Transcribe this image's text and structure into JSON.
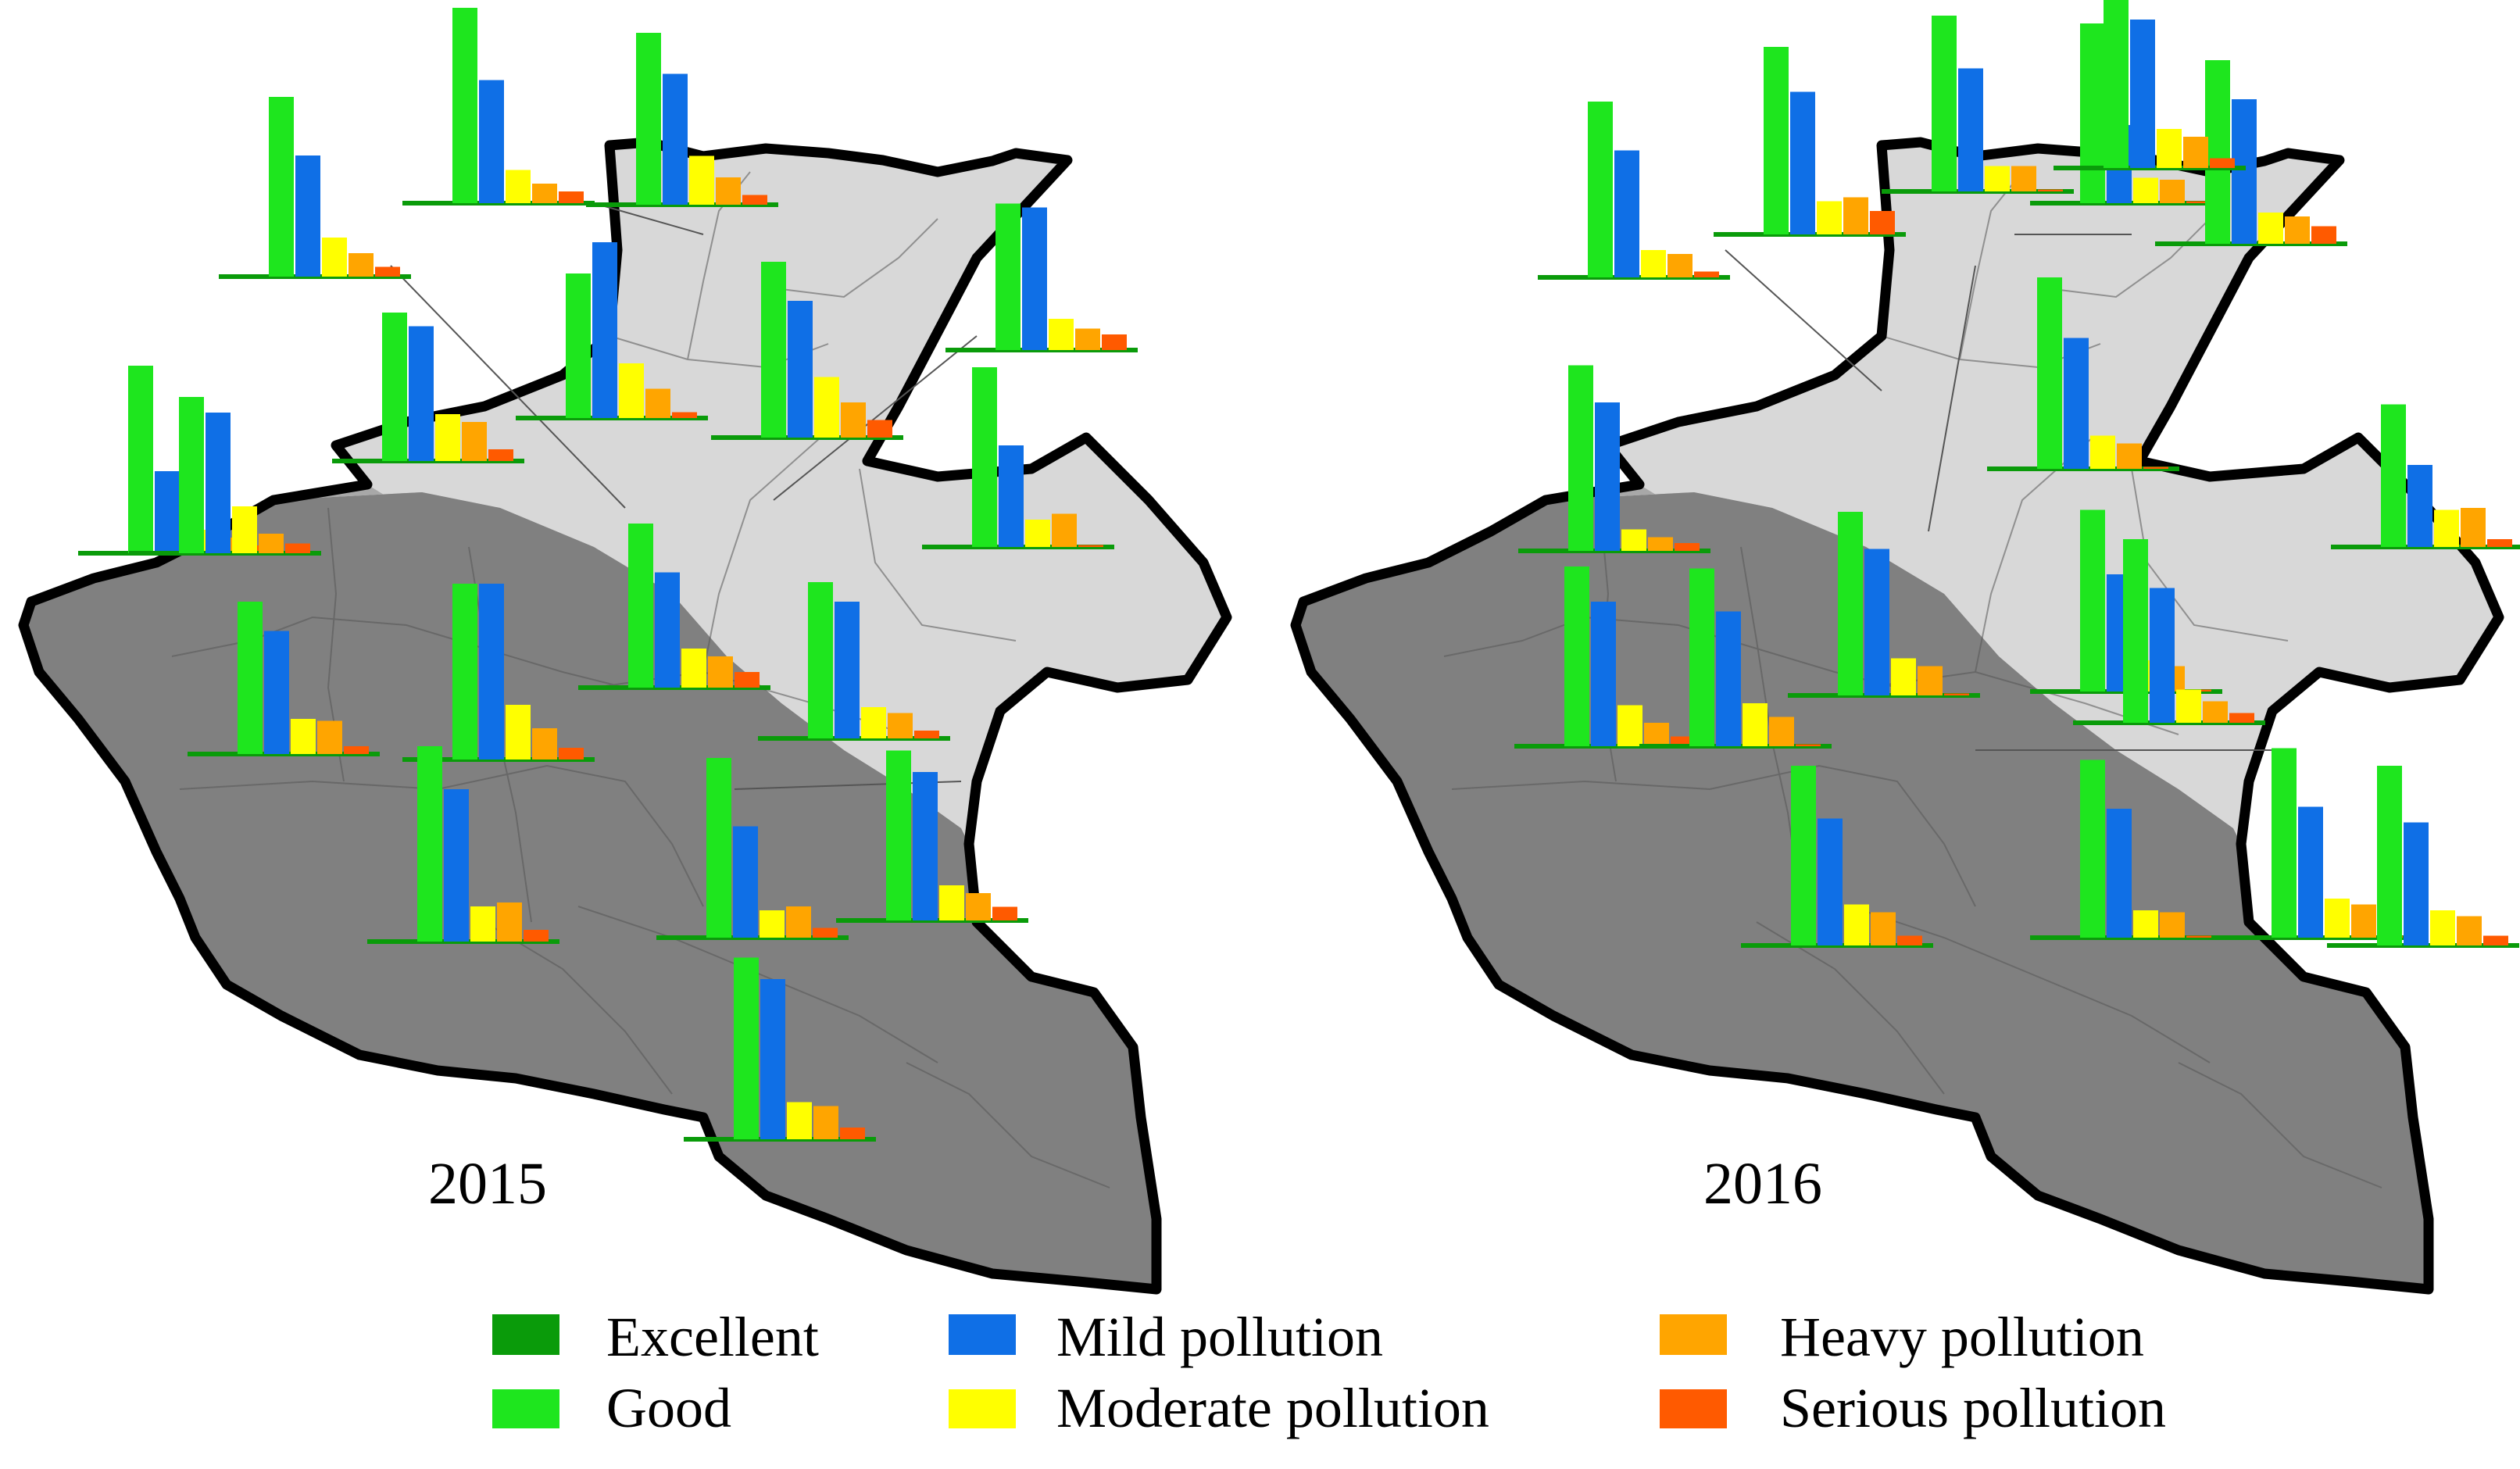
{
  "colors": {
    "excellent": "#0a9b0a",
    "good": "#1ee61e",
    "mild": "#0f6fe6",
    "moderate": "#ffff00",
    "heavy": "#ffa500",
    "serious": "#ff5a00",
    "region_light": "#d8d8d8",
    "region_medium": "#a8a8a8",
    "region_dark": "#808080",
    "border": "#000000"
  },
  "maps": [
    {
      "year": "2015",
      "city_bars": [
        [
          0,
          96,
          42,
          12,
          8,
          4
        ],
        [
          0,
          92,
          62,
          20,
          12,
          5
        ],
        [
          0,
          100,
          63,
          17,
          10,
          6
        ],
        [
          0,
          88,
          67,
          25,
          14,
          5
        ],
        [
          0,
          76,
          69,
          24,
          20,
          6
        ],
        [
          0,
          74,
          90,
          28,
          15,
          3
        ],
        [
          0,
          90,
          70,
          31,
          18,
          9
        ],
        [
          0,
          75,
          73,
          16,
          11,
          8
        ],
        [
          0,
          92,
          52,
          14,
          17,
          0
        ],
        [
          0,
          78,
          63,
          18,
          17,
          4
        ],
        [
          0,
          90,
          90,
          28,
          16,
          6
        ],
        [
          0,
          84,
          59,
          20,
          16,
          8
        ],
        [
          0,
          80,
          70,
          16,
          13,
          4
        ],
        [
          0,
          100,
          78,
          18,
          20,
          6
        ],
        [
          0,
          92,
          57,
          14,
          16,
          5
        ],
        [
          0,
          87,
          76,
          18,
          14,
          7
        ],
        [
          0,
          93,
          82,
          19,
          17,
          6
        ],
        [
          0,
          80,
          72,
          24,
          10,
          5
        ]
      ]
    },
    {
      "year": "2016",
      "city_bars": [
        [
          0,
          95,
          76,
          11,
          7,
          4
        ],
        [
          0,
          90,
          65,
          14,
          12,
          3
        ],
        [
          0,
          96,
          73,
          17,
          19,
          12
        ],
        [
          0,
          90,
          63,
          13,
          13,
          0
        ],
        [
          0,
          92,
          40,
          13,
          12,
          0
        ],
        [
          0,
          94,
          74,
          16,
          14,
          9
        ],
        [
          0,
          92,
          76,
          20,
          16,
          5
        ],
        [
          0,
          98,
          67,
          17,
          13,
          0
        ],
        [
          0,
          73,
          42,
          19,
          20,
          4
        ],
        [
          0,
          92,
          74,
          21,
          12,
          5
        ],
        [
          0,
          91,
          69,
          22,
          15,
          0
        ],
        [
          0,
          94,
          75,
          19,
          15,
          0
        ],
        [
          0,
          93,
          60,
          16,
          13,
          0
        ],
        [
          0,
          92,
          65,
          21,
          17,
          5
        ],
        [
          0,
          91,
          66,
          14,
          13,
          0
        ],
        [
          0,
          94,
          69,
          17,
          11,
          5
        ],
        [
          0,
          97,
          67,
          20,
          17,
          0
        ],
        [
          0,
          92,
          63,
          18,
          15,
          5
        ]
      ]
    }
  ],
  "legend": {
    "excellent": "Excellent",
    "good": "Good",
    "mild": "Mild pollution",
    "moderate": "Moderate pollution",
    "heavy": "Heavy pollution",
    "serious": "Serious pollution"
  }
}
